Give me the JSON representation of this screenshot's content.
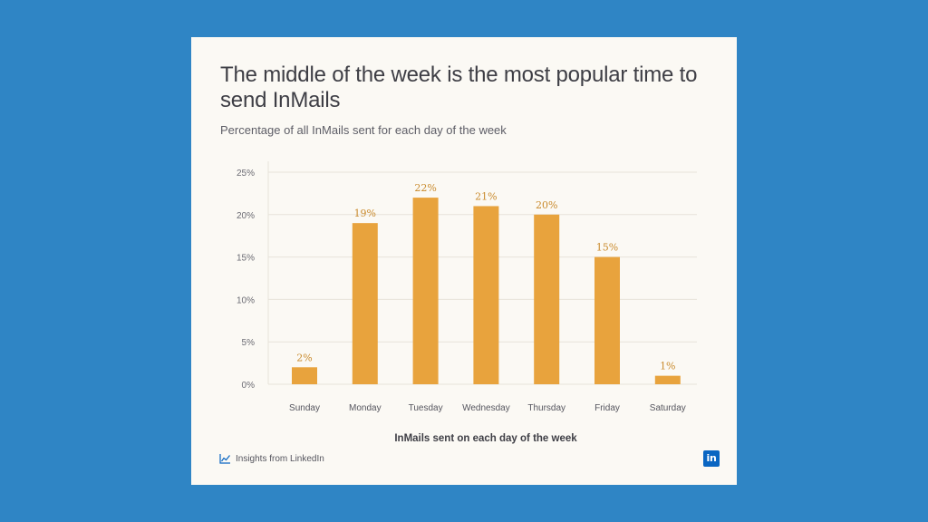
{
  "card": {
    "title": "The middle of the week is the most popular time to send InMails",
    "subtitle": "Percentage of all InMails sent for each day of the week",
    "footer_text": "Insights from LinkedIn",
    "logo_text": "in"
  },
  "colors": {
    "page_background": "#2F85C5",
    "card_background": "#FBF9F4",
    "bar": "#E8A33D",
    "value_label": "#C98A2C",
    "gridline": "#E7E3DA",
    "linkedin_blue": "#0A66C2"
  },
  "chart_data": {
    "type": "bar",
    "categories": [
      "Sunday",
      "Monday",
      "Tuesday",
      "Wednesday",
      "Thursday",
      "Friday",
      "Saturday"
    ],
    "values": [
      2,
      19,
      22,
      21,
      20,
      15,
      1
    ],
    "value_labels": [
      "2%",
      "19%",
      "22%",
      "21%",
      "20%",
      "15%",
      "1%"
    ],
    "title": "The middle of the week is the most popular time to send InMails",
    "subtitle": "Percentage of all InMails sent for each day of the week",
    "xlabel": "InMails sent on each day of the week",
    "ylabel": "",
    "ylim": [
      0,
      25
    ],
    "yticks": [
      0,
      5,
      10,
      15,
      20,
      25
    ],
    "ytick_labels": [
      "0%",
      "5%",
      "10%",
      "15%",
      "20%",
      "25%"
    ],
    "grid": true,
    "legend": "none"
  }
}
